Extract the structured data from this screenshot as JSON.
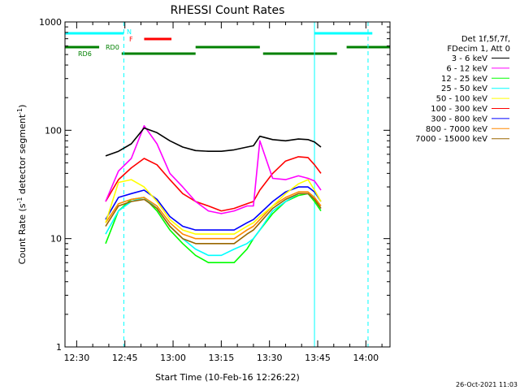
{
  "chart_data": {
    "type": "line",
    "title": "RHESSI Count Rates",
    "xlabel": "Start Time (10-Feb-16 12:26:22)",
    "ylabel_parts": [
      "Count Rate (s",
      "-1",
      " detector segment",
      "-1",
      ")"
    ],
    "y_scale": "log",
    "ylim": [
      1,
      1000
    ],
    "x_unit": "minutes",
    "xlim": [
      "12:26:22",
      "14:07:30"
    ],
    "x_ticks": [
      "12:30",
      "12:45",
      "13:00",
      "13:15",
      "13:30",
      "13:45",
      "14:00"
    ],
    "y_ticks": [
      "1",
      "10",
      "100",
      "1000"
    ],
    "footer": "26-Oct-2021 11:03",
    "legend_placement": "right",
    "legend_header": [
      "Det 1f,5f,7f,",
      "FDecim 1, Att 0"
    ],
    "flags": [
      {
        "label": "N",
        "color": "#00ffff",
        "segments": [
          [
            "12:26:22",
            "12:44:40"
          ],
          [
            "13:44:00",
            "14:02:00"
          ]
        ]
      },
      {
        "label": "F",
        "color": "#ff0000",
        "segments": [
          [
            "12:51:00",
            "12:59:30"
          ]
        ]
      },
      {
        "label": "RD0",
        "color": "#008000",
        "segments": [
          [
            "12:26:22",
            "12:37:00"
          ],
          [
            "13:07:00",
            "13:27:00"
          ],
          [
            "13:54:00",
            "14:07:30"
          ]
        ]
      },
      {
        "label": "RD6",
        "color": "#008000",
        "segments": [
          [
            "12:44:00",
            "13:07:00"
          ],
          [
            "13:28:00",
            "13:51:00"
          ]
        ]
      }
    ],
    "markers": [
      {
        "time": "12:26:22",
        "style": "solid",
        "color": "#00ffff"
      },
      {
        "time": "12:44:40",
        "style": "dashed",
        "color": "#00ffff"
      },
      {
        "time": "13:44:00",
        "style": "solid",
        "color": "#00ffff"
      },
      {
        "time": "14:00:40",
        "style": "dashed",
        "color": "#00ffff"
      }
    ],
    "x": [
      "12:39",
      "12:43",
      "12:47",
      "12:51",
      "12:55",
      "12:59",
      "13:03",
      "13:07",
      "13:11",
      "13:15",
      "13:19",
      "13:23",
      "13:25",
      "13:27",
      "13:31",
      "13:35",
      "13:39",
      "13:42",
      "13:44",
      "13:46"
    ],
    "series": [
      {
        "name": "3 - 6 keV",
        "color": "#000000",
        "values": [
          58,
          64,
          75,
          105,
          95,
          80,
          70,
          65,
          64,
          64,
          66,
          70,
          72,
          88,
          82,
          80,
          83,
          82,
          78,
          70
        ]
      },
      {
        "name": "6 - 12 keV",
        "color": "#ff00ff",
        "values": [
          22,
          42,
          55,
          110,
          75,
          40,
          30,
          22,
          18,
          17,
          18,
          20,
          20,
          80,
          36,
          35,
          38,
          36,
          34,
          28
        ]
      },
      {
        "name": "12 - 25 keV",
        "color": "#00ff00",
        "values": [
          9,
          18,
          23,
          24,
          18,
          12,
          9,
          7,
          6,
          6,
          6,
          8,
          10,
          12,
          17,
          22,
          25,
          26,
          22,
          18
        ]
      },
      {
        "name": "25 - 50 keV",
        "color": "#00ffff",
        "values": [
          11,
          18,
          22,
          24,
          19,
          13,
          10,
          8,
          7,
          7,
          8,
          9,
          10,
          12,
          18,
          22,
          26,
          26,
          23,
          19
        ]
      },
      {
        "name": "50 - 100 keV",
        "color": "#ffff00",
        "values": [
          14,
          33,
          35,
          30,
          22,
          15,
          12,
          11,
          11,
          11,
          11,
          13,
          14,
          16,
          20,
          26,
          32,
          35,
          28,
          22
        ]
      },
      {
        "name": "100 - 300 keV",
        "color": "#ff0000",
        "values": [
          22,
          35,
          45,
          55,
          48,
          35,
          26,
          22,
          20,
          18,
          19,
          21,
          22,
          28,
          40,
          52,
          57,
          56,
          48,
          40
        ]
      },
      {
        "name": "300 - 800 keV",
        "color": "#0000ff",
        "values": [
          15,
          24,
          26,
          28,
          23,
          16,
          13,
          12,
          12,
          12,
          12,
          14,
          15,
          17,
          22,
          27,
          30,
          30,
          27,
          22
        ]
      },
      {
        "name": "800 - 7000 keV",
        "color": "#ff8800",
        "values": [
          14,
          21,
          23,
          24,
          20,
          14,
          11,
          10,
          10,
          10,
          10,
          12,
          13,
          15,
          20,
          24,
          27,
          27,
          24,
          20
        ]
      },
      {
        "name": "7000 - 15000 keV",
        "color": "#996600",
        "values": [
          13,
          20,
          22,
          23,
          19,
          13,
          10,
          9,
          9,
          9,
          9,
          11,
          12,
          14,
          19,
          23,
          26,
          26,
          23,
          19
        ]
      }
    ]
  }
}
